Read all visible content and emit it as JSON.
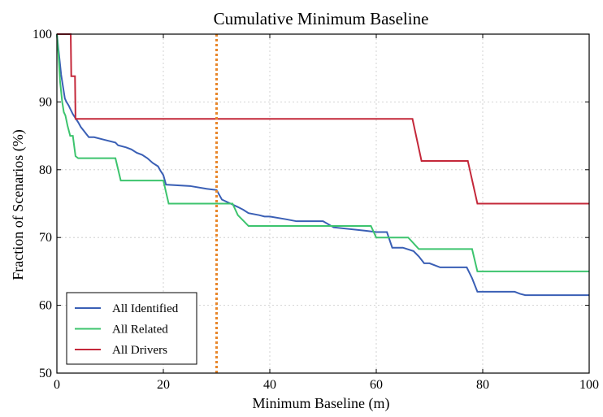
{
  "chart_data": {
    "type": "line",
    "title": "Cumulative Minimum Baseline",
    "xlabel": "Minimum Baseline (m)",
    "ylabel": "Fraction of Scenarios (%)",
    "xlim": [
      0,
      100
    ],
    "ylim": [
      50,
      100
    ],
    "xticks": [
      0,
      20,
      40,
      60,
      80,
      100
    ],
    "yticks": [
      50,
      60,
      70,
      80,
      90,
      100
    ],
    "grid": true,
    "legend_position": "lower-left",
    "series": [
      {
        "name": "All Identified",
        "color": "#3a5fb5",
        "x": [
          0,
          0.2,
          0.4,
          0.6,
          0.8,
          1.0,
          1.2,
          1.5,
          1.8,
          2.2,
          2.5,
          3.0,
          3.5,
          4.0,
          4.5,
          5.0,
          5.5,
          6.0,
          7.0,
          11.0,
          11.5,
          13.0,
          14.0,
          15.0,
          16.0,
          17.0,
          18.0,
          19.0,
          19.5,
          20.0,
          20.5,
          25.0,
          28.0,
          30.0,
          31.0,
          34.0,
          35.0,
          36.0,
          38.0,
          39.0,
          40.0,
          43.0,
          45.0,
          50.0,
          52.0,
          58.0,
          60.0,
          62.0,
          63.0,
          65.0,
          67.0,
          68.0,
          69.0,
          70.0,
          72.0,
          74.0,
          77.0,
          78.0,
          79.0,
          80.0,
          86.0,
          87.0,
          88.0,
          100.0
        ],
        "y": [
          100,
          98.5,
          97.0,
          95.5,
          94.0,
          93.0,
          92.0,
          90.5,
          90.0,
          89.5,
          89.0,
          88.2,
          87.6,
          87.0,
          86.3,
          85.8,
          85.3,
          84.8,
          84.8,
          84.0,
          83.6,
          83.3,
          83.0,
          82.5,
          82.2,
          81.7,
          81.0,
          80.5,
          79.8,
          79.2,
          77.8,
          77.6,
          77.2,
          77.0,
          75.6,
          74.5,
          74.1,
          73.6,
          73.3,
          73.1,
          73.1,
          72.7,
          72.4,
          72.4,
          71.5,
          71.0,
          70.8,
          70.8,
          68.5,
          68.5,
          68.0,
          67.2,
          66.2,
          66.2,
          65.6,
          65.6,
          65.6,
          64.0,
          62.0,
          62.0,
          62.0,
          61.7,
          61.5,
          61.5
        ]
      },
      {
        "name": "All Related",
        "color": "#3dc46e",
        "x": [
          0,
          0.3,
          0.6,
          1.0,
          1.3,
          1.6,
          2.0,
          2.5,
          3.0,
          3.5,
          4.0,
          11.0,
          12.0,
          20.0,
          21.0,
          30.0,
          33.0,
          34.0,
          35.0,
          36.0,
          47.0,
          53.0,
          59.0,
          60.0,
          66.0,
          68.0,
          78.0,
          79.0,
          100.0
        ],
        "y": [
          100,
          97.0,
          93.0,
          90.0,
          88.5,
          88.0,
          86.5,
          85.0,
          85.0,
          82.0,
          81.7,
          81.7,
          78.4,
          78.4,
          75.0,
          75.0,
          75.0,
          73.3,
          72.5,
          71.7,
          71.7,
          71.7,
          71.7,
          70.0,
          70.0,
          68.3,
          68.3,
          65.0,
          65.0
        ]
      },
      {
        "name": "All Drivers",
        "color": "#c4283a",
        "x": [
          0,
          2.6,
          2.7,
          3.4,
          3.5,
          66.8,
          68.5,
          77.2,
          79.0,
          100.0
        ],
        "y": [
          100,
          100,
          93.8,
          93.8,
          87.5,
          87.5,
          81.3,
          81.3,
          75.0,
          75.0
        ]
      }
    ],
    "annotations": [
      {
        "type": "vline",
        "x": 30,
        "color": "#e8862a",
        "style": "dotted"
      }
    ]
  }
}
